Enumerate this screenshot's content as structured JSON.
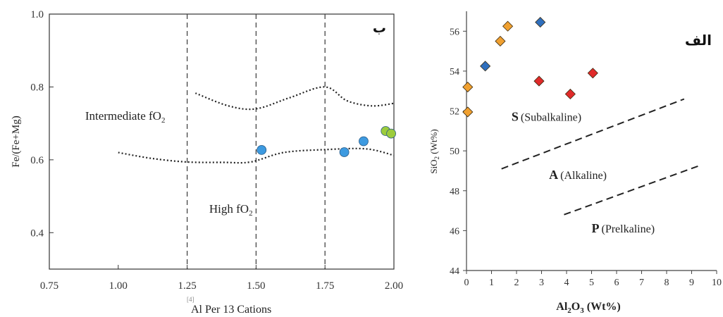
{
  "chart_data": [
    {
      "type": "scatter",
      "panel_label": "ب",
      "xlabel_sup": "[4]",
      "xlabel": "Al Per 13 Cations",
      "ylabel": "Fe/(Fe+Mg)",
      "xlim": [
        0.75,
        2.0
      ],
      "ylim": [
        0.3,
        1.0
      ],
      "x_ticks": [
        "0.75",
        "1.00",
        "1.25",
        "1.50",
        "1.75",
        "2.00"
      ],
      "x_tick_values": [
        0.75,
        1.0,
        1.25,
        1.5,
        1.75,
        2.0
      ],
      "y_ticks": [
        "0.4",
        "0.6",
        "0.8",
        "1.0"
      ],
      "y_tick_values": [
        0.4,
        0.6,
        0.8,
        1.0
      ],
      "vlines": [
        1.25,
        1.5,
        1.75
      ],
      "annotations": [
        {
          "text": "Intermediate fO",
          "sub": "2",
          "x": 0.88,
          "y": 0.71
        },
        {
          "text": "High fO",
          "sub": "2",
          "x": 1.33,
          "y": 0.455
        }
      ],
      "boundary_upper": [
        [
          1.28,
          0.783
        ],
        [
          1.4,
          0.748
        ],
        [
          1.5,
          0.74
        ],
        [
          1.62,
          0.77
        ],
        [
          1.75,
          0.8
        ],
        [
          1.83,
          0.762
        ],
        [
          1.92,
          0.748
        ],
        [
          2.0,
          0.755
        ]
      ],
      "boundary_lower": [
        [
          1.0,
          0.62
        ],
        [
          1.12,
          0.604
        ],
        [
          1.25,
          0.594
        ],
        [
          1.38,
          0.593
        ],
        [
          1.48,
          0.594
        ],
        [
          1.6,
          0.62
        ],
        [
          1.75,
          0.628
        ],
        [
          1.9,
          0.63
        ],
        [
          2.0,
          0.612
        ]
      ],
      "points": [
        {
          "x": 1.52,
          "y": 0.627
        },
        {
          "x": 1.82,
          "y": 0.621
        },
        {
          "x": 1.89,
          "y": 0.651
        },
        {
          "x": 1.97,
          "y": 0.679
        },
        {
          "x": 1.99,
          "y": 0.672
        }
      ],
      "point_colors": [
        "#3d9ae0",
        "#3d9ae0",
        "#3d9ae0",
        "#9ccc3c",
        "#9ccc3c"
      ]
    },
    {
      "type": "scatter",
      "panel_label": "الف",
      "xlabel": "Al",
      "xlabel_parts": [
        "Al",
        "2",
        "O",
        "3",
        " (Wt%)"
      ],
      "ylabel_parts": [
        "SiO",
        "2",
        " (Wt%)"
      ],
      "xlim": [
        0,
        10
      ],
      "ylim": [
        44,
        57
      ],
      "x_ticks": [
        "0",
        "1",
        "2",
        "3",
        "4",
        "5",
        "6",
        "7",
        "8",
        "9",
        "10"
      ],
      "x_tick_values": [
        0,
        1,
        2,
        3,
        4,
        5,
        6,
        7,
        8,
        9,
        10
      ],
      "y_ticks": [
        "44",
        "46",
        "48",
        "50",
        "52",
        "54",
        "56"
      ],
      "y_tick_values": [
        44,
        46,
        48,
        50,
        52,
        54,
        56
      ],
      "field_labels": [
        {
          "letter": "S",
          "rest": "(Subalkaline)",
          "x": 1.8,
          "y": 51.5
        },
        {
          "letter": "A",
          "rest": "(Alkaline)",
          "x": 3.3,
          "y": 48.6
        },
        {
          "letter": "P",
          "rest": "(Prelkaline)",
          "x": 5.0,
          "y": 45.9
        }
      ],
      "dividers": [
        {
          "x": [
            1.4,
            8.7
          ],
          "y": [
            49.1,
            52.6
          ]
        },
        {
          "x": [
            3.9,
            9.4
          ],
          "y": [
            46.8,
            49.3
          ]
        }
      ],
      "points": [
        {
          "x": 0.05,
          "y": 51.95,
          "color": "#f0a030"
        },
        {
          "x": 0.05,
          "y": 53.2,
          "color": "#f0a030"
        },
        {
          "x": 1.35,
          "y": 55.5,
          "color": "#f0a030"
        },
        {
          "x": 1.65,
          "y": 56.25,
          "color": "#f0a030"
        },
        {
          "x": 0.75,
          "y": 54.25,
          "color": "#2f6fbd"
        },
        {
          "x": 2.95,
          "y": 56.45,
          "color": "#2f6fbd"
        },
        {
          "x": 2.9,
          "y": 53.5,
          "color": "#e02a2a"
        },
        {
          "x": 4.15,
          "y": 52.85,
          "color": "#e02a2a"
        },
        {
          "x": 5.05,
          "y": 53.9,
          "color": "#e02a2a"
        }
      ]
    }
  ]
}
